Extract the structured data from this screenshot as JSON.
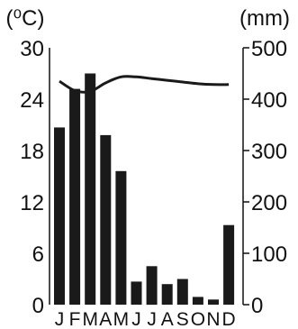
{
  "chart_data": {
    "type": "bar",
    "categories": [
      "J",
      "F",
      "M",
      "A",
      "M",
      "J",
      "J",
      "A",
      "S",
      "O",
      "N",
      "D"
    ],
    "left_axis": {
      "unit_label": "(⁰C)",
      "ticks": [
        "30",
        "24",
        "18",
        "12",
        "6",
        "0"
      ],
      "ylim": [
        0,
        30
      ]
    },
    "right_axis": {
      "unit_label": "(mm)",
      "ticks": [
        "500",
        "400",
        "300",
        "200",
        "100",
        "0"
      ],
      "ylim": [
        0,
        500
      ]
    },
    "series": [
      {
        "kind": "bar",
        "axis": "right",
        "values": [
          345,
          420,
          450,
          330,
          260,
          45,
          75,
          40,
          50,
          15,
          10,
          155
        ]
      },
      {
        "kind": "line",
        "axis": "left",
        "values": [
          26.1,
          25.0,
          24.9,
          25.9,
          26.6,
          26.6,
          26.4,
          26.2,
          26.0,
          25.8,
          25.7,
          25.7
        ]
      }
    ],
    "grid": false,
    "colors": {
      "bar": "#1a1a1a",
      "line": "#1a1a1a",
      "axis": "#111111"
    }
  }
}
